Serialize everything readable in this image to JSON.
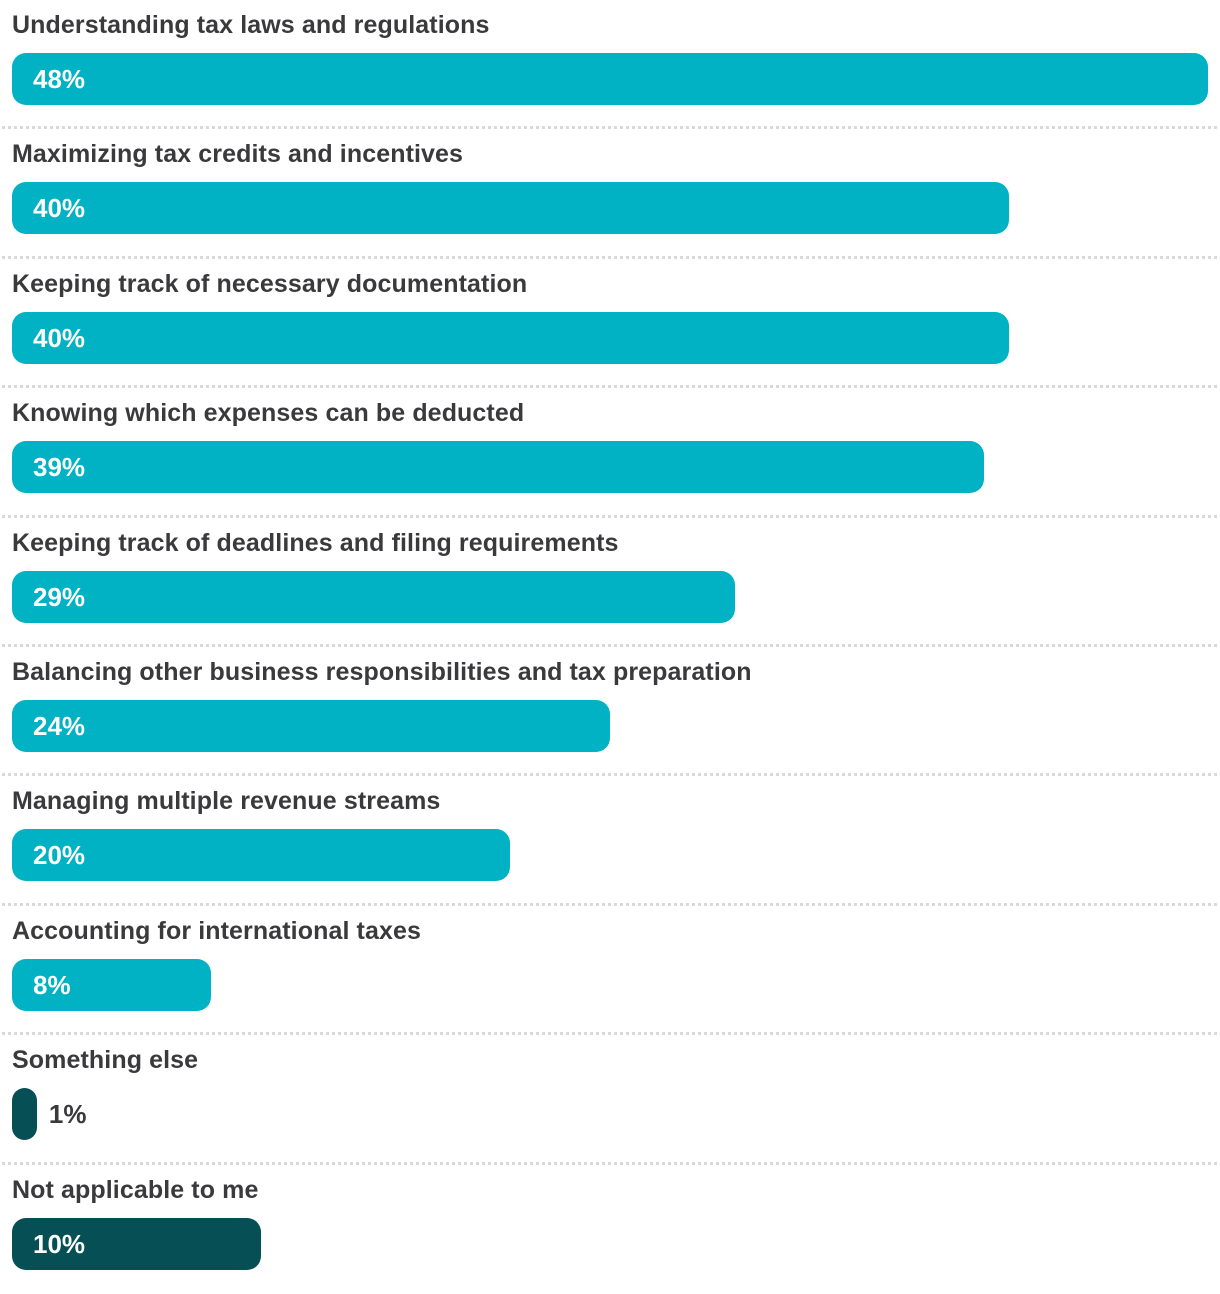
{
  "chart_data": {
    "type": "bar",
    "orientation": "horizontal",
    "title": "",
    "xlabel": "",
    "ylabel": "",
    "xlim": [
      0,
      48
    ],
    "grid": false,
    "legend": false,
    "categories": [
      "Understanding tax laws and regulations",
      "Maximizing tax credits and incentives",
      "Keeping track of necessary documentation",
      "Knowing which expenses can be deducted",
      "Keeping track of deadlines and filing requirements",
      "Balancing other business responsibilities and tax preparation",
      "Managing multiple revenue streams",
      "Accounting for international taxes",
      "Something else",
      "Not applicable to me"
    ],
    "values": [
      48,
      40,
      40,
      39,
      29,
      24,
      20,
      8,
      1,
      10
    ],
    "value_labels": [
      "48%",
      "40%",
      "40%",
      "39%",
      "29%",
      "24%",
      "20%",
      "8%",
      "1%",
      "10%"
    ],
    "dark_bar_indices": [
      8,
      9
    ],
    "outside_label_indices": [
      8
    ],
    "colors": {
      "bar_primary": "#00B2C3",
      "bar_dark": "#054F55",
      "category_label": "#3A3A3C",
      "value_label_inside": "#FFFFFF",
      "value_label_outside": "#3A3A3C",
      "separator": "#D9D9D9",
      "background": "#FFFFFF"
    }
  }
}
